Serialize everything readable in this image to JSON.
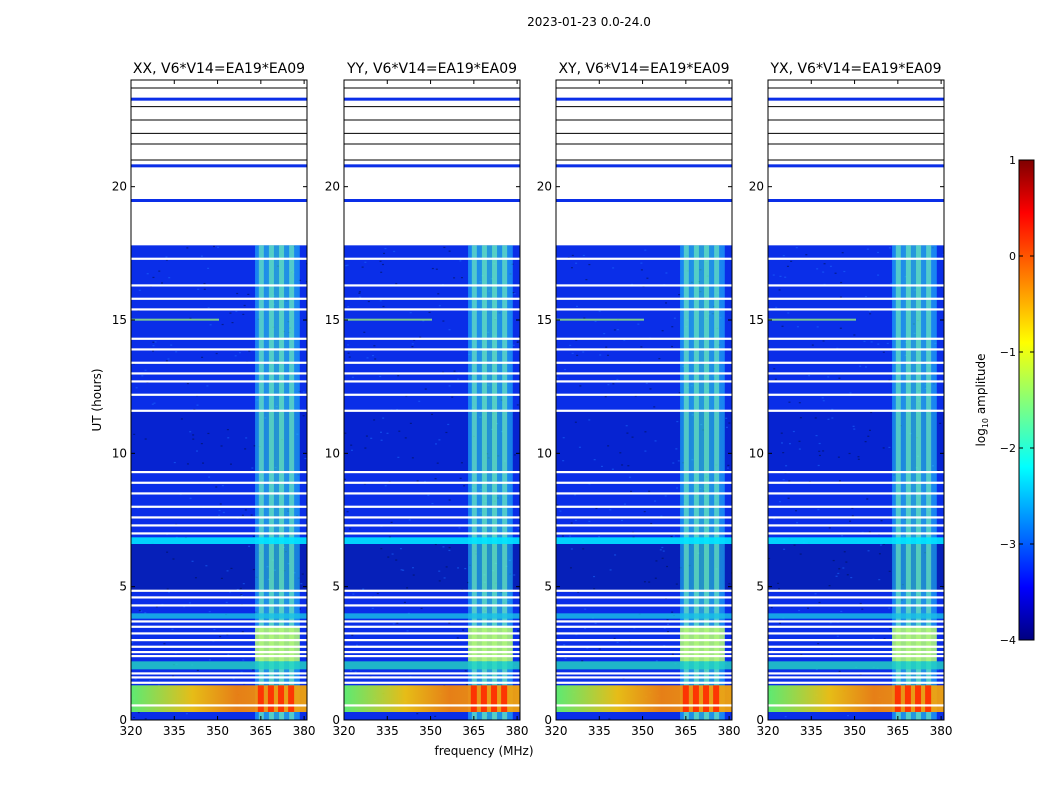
{
  "figure": {
    "suptitle": "2023-01-23 0.0-24.0",
    "xlabel": "frequency (MHz)",
    "ylabel": "UT (hours)"
  },
  "colorbar": {
    "label_prefix": "log",
    "label_sub": "10",
    "label_suffix": " amplitude",
    "range": [
      -4,
      1
    ],
    "ticks": [
      1,
      0,
      -1,
      -2,
      -3,
      -4
    ],
    "tick_labels": [
      "1",
      "0",
      "−1",
      "−2",
      "−3",
      "−4"
    ],
    "colormap": "jet",
    "stops": [
      "#00007f",
      "#0000ff",
      "#00ffff",
      "#ffff00",
      "#ff0000",
      "#7f0000"
    ]
  },
  "chart_data": [
    {
      "type": "heatmap",
      "title": "XX, V6*V14=EA19*EA09",
      "xlim": [
        320,
        381
      ],
      "ylim": [
        0,
        24
      ],
      "xticks": [
        320,
        335,
        350,
        365,
        380
      ],
      "yticks": [
        0,
        5,
        10,
        15,
        20
      ],
      "z": "log10 amplitude of visibility vs UT and frequency"
    },
    {
      "type": "heatmap",
      "title": "YY, V6*V14=EA19*EA09",
      "xlim": [
        320,
        381
      ],
      "ylim": [
        0,
        24
      ],
      "xticks": [
        320,
        335,
        350,
        365,
        380
      ],
      "yticks": [
        0,
        5,
        10,
        15,
        20
      ],
      "z": "log10 amplitude of visibility vs UT and frequency"
    },
    {
      "type": "heatmap",
      "title": "XY, V6*V14=EA19*EA09",
      "xlim": [
        320,
        381
      ],
      "ylim": [
        0,
        24
      ],
      "xticks": [
        320,
        335,
        350,
        365,
        380
      ],
      "yticks": [
        0,
        5,
        10,
        15,
        20
      ],
      "z": "log10 amplitude of visibility vs UT and frequency"
    },
    {
      "type": "heatmap",
      "title": "YX, V6*V14=EA19*EA09",
      "xlim": [
        320,
        381
      ],
      "ylim": [
        0,
        24
      ],
      "xticks": [
        320,
        335,
        350,
        365,
        380
      ],
      "yticks": [
        0,
        5,
        10,
        15,
        20
      ],
      "z": "log10 amplitude of visibility vs UT and frequency"
    }
  ]
}
